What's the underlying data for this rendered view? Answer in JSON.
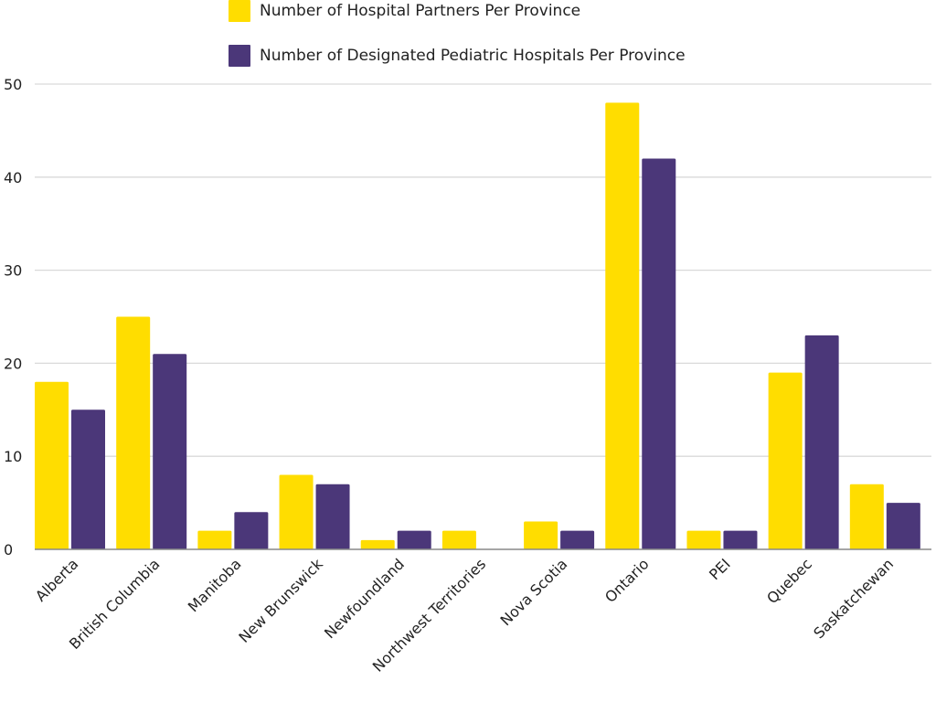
{
  "chart_data": {
    "type": "bar",
    "title": "",
    "xlabel": "",
    "ylabel": "",
    "ylim": [
      0,
      50
    ],
    "yticks": [
      0,
      10,
      20,
      30,
      40,
      50
    ],
    "grid": true,
    "legend_position": "top-center",
    "categories": [
      "Alberta",
      "British Columbia",
      "Manitoba",
      "New Brunswick",
      "Newfoundland",
      "Northwest Territories",
      "Nova Scotia",
      "Ontario",
      "PEI",
      "Quebec",
      "Saskatchewan"
    ],
    "series": [
      {
        "name": "Number of Hospital Partners Per Province",
        "color": "#FFDD00",
        "values": [
          18,
          25,
          2,
          8,
          1,
          2,
          3,
          48,
          2,
          19,
          7
        ]
      },
      {
        "name": "Number of Designated Pediatric Hospitals Per Province",
        "color": "#4B3779",
        "values": [
          15,
          21,
          4,
          7,
          2,
          0,
          2,
          42,
          2,
          23,
          5
        ]
      }
    ]
  },
  "legend": {
    "items": [
      {
        "label": "Number of Hospital Partners Per Province",
        "color": "#FFDD00"
      },
      {
        "label": "Number of Designated Pediatric Hospitals Per Province",
        "color": "#4B3779"
      }
    ]
  }
}
